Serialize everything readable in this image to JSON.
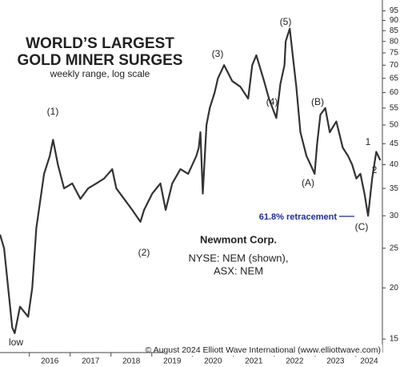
{
  "chart_data": {
    "type": "line",
    "title": [
      "WORLD’S LARGEST",
      "GOLD MINER SURGES"
    ],
    "subtitle": "weekly range, log scale",
    "annotations": [
      "(1)",
      "(2)",
      "(3)",
      "(4)",
      "(5)",
      "(A)",
      "(B)",
      "(C)",
      "1",
      "2",
      "low",
      "61.8% retracement",
      "Newmont Corp.",
      "NYSE: NEM (shown),",
      "ASX: NEM",
      "© August 2024 Elliott Wave International (www.elliottwave.com)"
    ],
    "x": [
      2015.28,
      2015.38,
      2015.48,
      2015.58,
      2015.64,
      2015.77,
      2015.97,
      2016.07,
      2016.17,
      2016.36,
      2016.5,
      2016.58,
      2016.7,
      2016.85,
      2017.05,
      2017.25,
      2017.44,
      2017.64,
      2017.83,
      2018.03,
      2018.13,
      2018.32,
      2018.52,
      2018.72,
      2018.81,
      2019.01,
      2019.21,
      2019.34,
      2019.5,
      2019.7,
      2019.89,
      2020.09,
      2020.15,
      2020.19,
      2020.25,
      2020.34,
      2020.42,
      2020.54,
      2020.62,
      2020.77,
      2020.97,
      2021.17,
      2021.36,
      2021.46,
      2021.56,
      2021.75,
      2021.87,
      2022.05,
      2022.15,
      2022.25,
      2022.28,
      2022.38,
      2022.48,
      2022.54,
      2022.64,
      2022.79,
      2022.89,
      2022.99,
      2023.05,
      2023.13,
      2023.25,
      2023.36,
      2023.52,
      2023.68,
      2023.81,
      2023.91,
      2024.01,
      2024.11,
      2024.21,
      2024.3,
      2024.4,
      2024.5,
      2024.6
    ],
    "values": [
      27,
      25,
      20,
      16,
      15.5,
      18,
      17,
      20,
      28,
      38,
      42,
      46,
      40,
      35,
      36,
      33,
      35,
      36,
      37,
      39,
      35,
      33,
      31,
      29,
      31,
      34,
      36,
      31,
      36,
      39,
      38,
      42,
      44,
      48,
      34,
      50,
      55,
      60,
      65,
      70,
      64,
      62,
      58,
      70,
      74,
      64,
      58,
      52,
      63,
      70,
      80,
      86,
      70,
      62,
      48,
      42,
      40,
      38,
      45,
      53,
      55,
      48,
      51,
      44,
      42,
      40,
      37,
      38,
      34,
      30,
      37,
      43,
      41
    ],
    "color": "#333333",
    "xlim": [
      2015.28,
      2024.65
    ],
    "ylim": [
      13.9,
      101
    ],
    "log_scale": true,
    "xticks": [
      2016,
      2017,
      2018,
      2019,
      2020,
      2021,
      2022,
      2023,
      2024
    ],
    "yticks": [
      15,
      20,
      25,
      30,
      35,
      40,
      45,
      50,
      55,
      60,
      65,
      70,
      75,
      80,
      85,
      90,
      95
    ]
  }
}
